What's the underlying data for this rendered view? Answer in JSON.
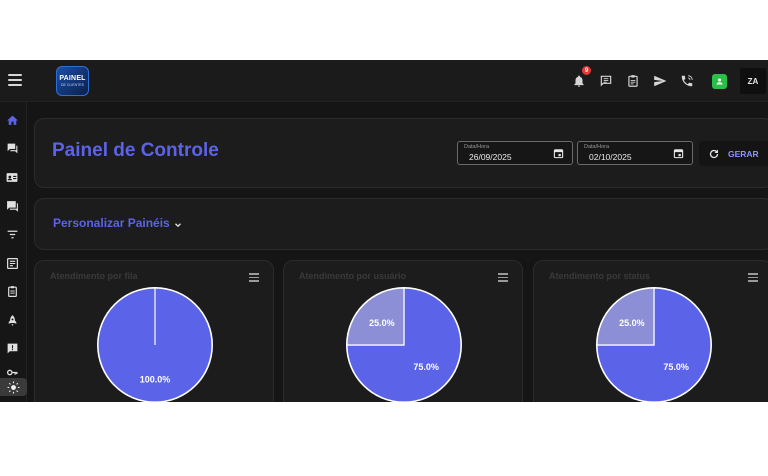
{
  "app": {
    "logo_line1": "PAINEL",
    "logo_line2": "DE CLIENTES",
    "notification_count": "9",
    "avatar_initials": "ZA"
  },
  "sidebar": {
    "items": [
      {
        "icon": "home-icon",
        "active": true
      },
      {
        "icon": "chat-list-icon"
      },
      {
        "icon": "contacts-card-icon"
      },
      {
        "icon": "forum-icon"
      },
      {
        "icon": "filter-icon"
      },
      {
        "icon": "document-list-icon"
      },
      {
        "icon": "clipboard-icon"
      },
      {
        "icon": "rocket-icon"
      },
      {
        "icon": "feedback-icon"
      },
      {
        "icon": "key-icon"
      }
    ],
    "theme_toggle_icon": "sun-icon"
  },
  "header": {
    "title": "Painel de Controle",
    "date_start_label": "Data/Hora",
    "date_start_value": "26/09/2025",
    "date_end_label": "Data/Hora",
    "date_end_value": "02/10/2025",
    "generate_label": "GERAR"
  },
  "personalize": {
    "label": "Personalizar Painéis"
  },
  "colors": {
    "accent": "#5b63e8",
    "pie_main": "#5b63e8",
    "pie_secondary": "#8c8fd6",
    "background": "#151515",
    "card": "#1c1c1c"
  },
  "chart_data": [
    {
      "type": "pie",
      "title": "Atendimento por fila",
      "series": [
        {
          "values": [
            100.0
          ]
        }
      ],
      "labels": [
        "100.0%"
      ]
    },
    {
      "type": "pie",
      "title": "Atendimento por usuário",
      "series": [
        {
          "values": [
            75.0,
            25.0
          ]
        }
      ],
      "labels": [
        "75.0%",
        "25.0%"
      ]
    },
    {
      "type": "pie",
      "title": "Atendimento por status",
      "series": [
        {
          "values": [
            75.0,
            25.0
          ]
        }
      ],
      "labels": [
        "75.0%",
        "25.0%"
      ]
    }
  ]
}
